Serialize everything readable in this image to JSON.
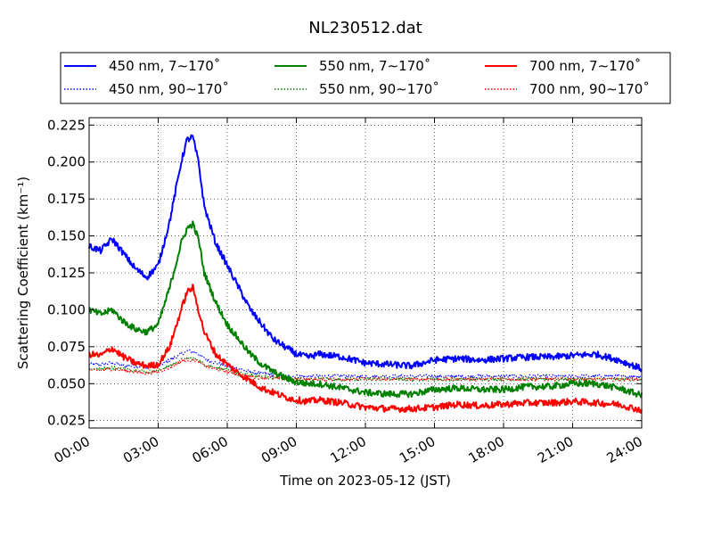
{
  "chart_data": {
    "type": "line",
    "title": "NL230512.dat",
    "xlabel": "Time on 2023-05-12 (JST)",
    "ylabel": "Scattering Coefficient (km⁻¹)",
    "xlim": [
      "2023-05-12 00:00",
      "2023-05-13 00:00"
    ],
    "ylim": [
      0.02,
      0.23
    ],
    "x_tick_labels": [
      "00:00",
      "03:00",
      "06:00",
      "09:00",
      "12:00",
      "15:00",
      "18:00",
      "21:00",
      "24:00"
    ],
    "y_ticks": [
      0.025,
      0.05,
      0.075,
      0.1,
      0.125,
      0.15,
      0.175,
      0.2,
      0.225
    ],
    "y_tick_labels": [
      "0.025",
      "0.050",
      "0.075",
      "0.100",
      "0.125",
      "0.150",
      "0.175",
      "0.200",
      "0.225"
    ],
    "grid": true,
    "legend_placement": "top, above plot",
    "series_x_hours": [
      0,
      0.5,
      1,
      1.5,
      2,
      2.5,
      3,
      3.5,
      4,
      4.25,
      4.5,
      4.75,
      5,
      5.5,
      6,
      6.5,
      7,
      7.5,
      8,
      8.5,
      9,
      9.5,
      10,
      11,
      12,
      13,
      14,
      15,
      16,
      17,
      18,
      19,
      20,
      21,
      22,
      23,
      24
    ],
    "series": [
      {
        "name": "450 nm, 7∼170˚",
        "color": "#0000ff",
        "style": "solid",
        "values": [
          0.143,
          0.14,
          0.148,
          0.138,
          0.128,
          0.122,
          0.13,
          0.16,
          0.2,
          0.215,
          0.217,
          0.2,
          0.17,
          0.145,
          0.13,
          0.115,
          0.1,
          0.09,
          0.08,
          0.075,
          0.07,
          0.068,
          0.07,
          0.068,
          0.064,
          0.063,
          0.062,
          0.066,
          0.067,
          0.066,
          0.067,
          0.068,
          0.068,
          0.069,
          0.07,
          0.066,
          0.06
        ]
      },
      {
        "name": "450 nm, 90∼170˚",
        "color": "#0000ff",
        "style": "dotted",
        "values": [
          0.063,
          0.063,
          0.064,
          0.062,
          0.062,
          0.061,
          0.062,
          0.066,
          0.07,
          0.072,
          0.072,
          0.07,
          0.067,
          0.064,
          0.062,
          0.06,
          0.058,
          0.057,
          0.056,
          0.055,
          0.055,
          0.055,
          0.055,
          0.055,
          0.055,
          0.055,
          0.055,
          0.055,
          0.055,
          0.055,
          0.055,
          0.055,
          0.055,
          0.055,
          0.055,
          0.055,
          0.055
        ]
      },
      {
        "name": "550 nm, 7∼170˚",
        "color": "#008000",
        "style": "solid",
        "values": [
          0.1,
          0.097,
          0.1,
          0.092,
          0.087,
          0.085,
          0.09,
          0.115,
          0.145,
          0.155,
          0.158,
          0.148,
          0.125,
          0.105,
          0.09,
          0.08,
          0.07,
          0.063,
          0.058,
          0.054,
          0.051,
          0.05,
          0.05,
          0.047,
          0.044,
          0.043,
          0.043,
          0.046,
          0.047,
          0.046,
          0.046,
          0.048,
          0.048,
          0.05,
          0.05,
          0.047,
          0.042
        ]
      },
      {
        "name": "550 nm, 90∼170˚",
        "color": "#008000",
        "style": "dotted",
        "values": [
          0.06,
          0.06,
          0.061,
          0.06,
          0.059,
          0.058,
          0.059,
          0.062,
          0.066,
          0.067,
          0.067,
          0.066,
          0.063,
          0.061,
          0.059,
          0.057,
          0.056,
          0.055,
          0.054,
          0.054,
          0.053,
          0.053,
          0.053,
          0.053,
          0.053,
          0.053,
          0.053,
          0.053,
          0.053,
          0.053,
          0.053,
          0.053,
          0.053,
          0.053,
          0.053,
          0.053,
          0.053
        ]
      },
      {
        "name": "700 nm, 7∼170˚",
        "color": "#ff0000",
        "style": "solid",
        "values": [
          0.07,
          0.069,
          0.074,
          0.068,
          0.064,
          0.062,
          0.063,
          0.075,
          0.1,
          0.112,
          0.115,
          0.1,
          0.085,
          0.07,
          0.063,
          0.057,
          0.052,
          0.047,
          0.044,
          0.041,
          0.039,
          0.038,
          0.039,
          0.037,
          0.034,
          0.033,
          0.033,
          0.034,
          0.036,
          0.035,
          0.036,
          0.037,
          0.037,
          0.038,
          0.037,
          0.036,
          0.032
        ]
      },
      {
        "name": "700 nm, 90∼170˚",
        "color": "#ff0000",
        "style": "dotted",
        "values": [
          0.059,
          0.059,
          0.06,
          0.059,
          0.058,
          0.057,
          0.058,
          0.061,
          0.065,
          0.066,
          0.066,
          0.065,
          0.062,
          0.06,
          0.058,
          0.056,
          0.055,
          0.054,
          0.054,
          0.053,
          0.053,
          0.053,
          0.053,
          0.053,
          0.053,
          0.053,
          0.053,
          0.053,
          0.053,
          0.053,
          0.053,
          0.053,
          0.053,
          0.053,
          0.053,
          0.053,
          0.053
        ]
      }
    ]
  }
}
